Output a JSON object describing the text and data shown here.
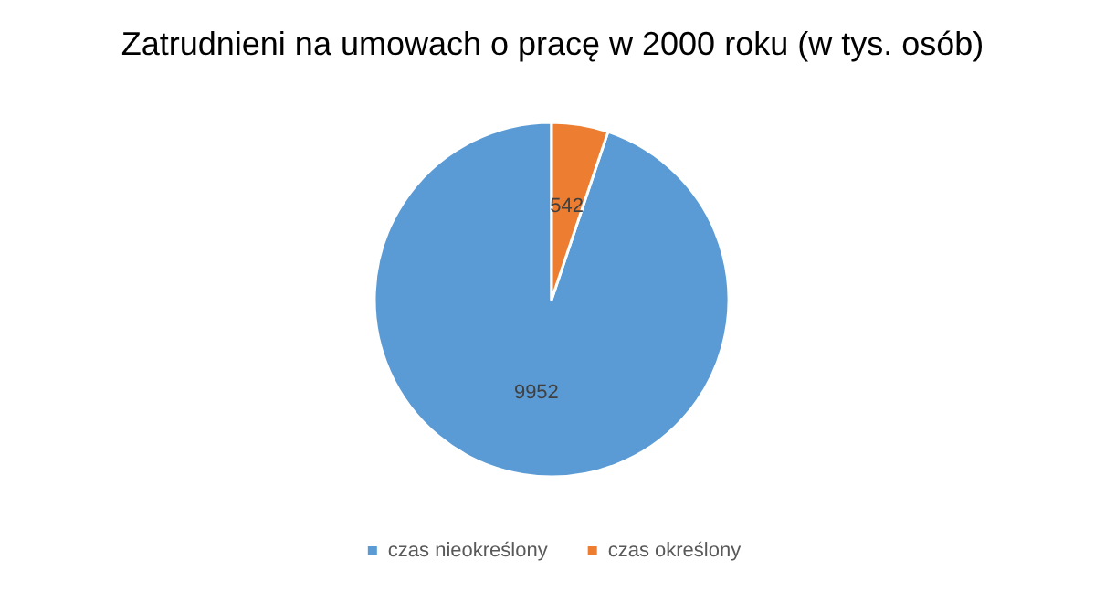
{
  "chart_data": {
    "type": "pie",
    "title": "Zatrudnieni na umowach o pracę w 2000 roku (w tys. osób)",
    "categories": [
      "czas nieokreślony",
      "czas określony"
    ],
    "values": [
      9952,
      542
    ],
    "colors": [
      "#5b9bd5",
      "#ed7d31"
    ],
    "data_labels": true,
    "legend": "bottom"
  }
}
